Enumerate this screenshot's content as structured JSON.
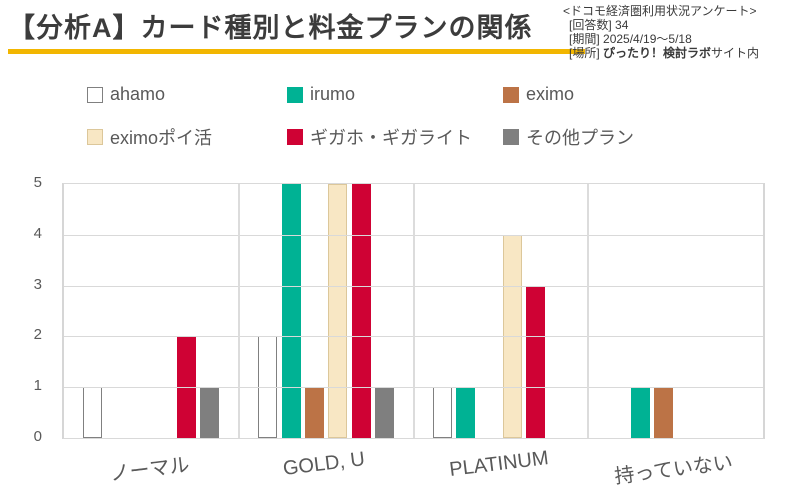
{
  "header": {
    "title": "【分析A】カード種別と料金プランの関係",
    "accent_color": "#F2B600"
  },
  "survey_info": {
    "line1": "<ドコモ経済圏利用状況アンケート>",
    "answers_label": "[回答数]",
    "answers_value": "34",
    "period_label": "[期間]",
    "period_value": "2025/4/19～5/18",
    "place_label": "[場所]",
    "place_bold": "ぴったり！検討ラボ",
    "place_rest": "サイト内"
  },
  "chart_data": {
    "type": "bar",
    "title": "カード種別と料金プランの関係",
    "categories": [
      "ノーマル",
      "GOLD, U",
      "PLATINUM",
      "持っていない"
    ],
    "series": [
      {
        "name": "ahamo",
        "color": "#FFFFFF",
        "border": "#808080",
        "values": [
          1,
          2,
          1,
          0
        ]
      },
      {
        "name": "irumo",
        "color": "#00B294",
        "values": [
          0,
          5,
          1,
          1
        ]
      },
      {
        "name": "eximo",
        "color": "#BC7346",
        "values": [
          0,
          1,
          0,
          1
        ]
      },
      {
        "name": "eximoポイ活",
        "color": "#F8E7C4",
        "border": "#DCC79A",
        "values": [
          0,
          5,
          4,
          0
        ]
      },
      {
        "name": "ギガホ・ギガライト",
        "color": "#CF0234",
        "values": [
          2,
          5,
          3,
          0
        ]
      },
      {
        "name": "その他プラン",
        "color": "#7F7F7F",
        "values": [
          1,
          1,
          0,
          0
        ]
      }
    ],
    "ylim": [
      0,
      5
    ],
    "yticks": [
      0,
      1,
      2,
      3,
      4,
      5
    ],
    "grid": true,
    "legend_position": "top",
    "grid_color": "#D9D9D9",
    "label_color": "#595959"
  }
}
